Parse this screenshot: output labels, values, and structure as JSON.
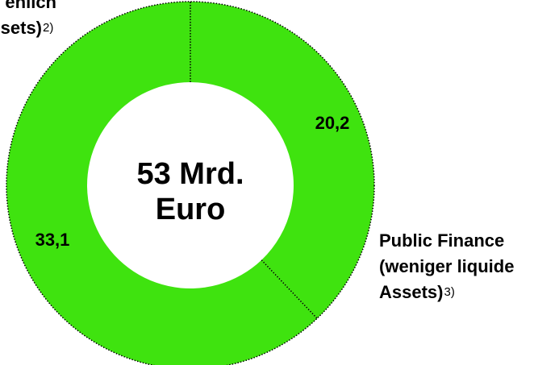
{
  "chart_data": {
    "type": "donut",
    "center_label": [
      "53 Mrd.",
      "Euro"
    ],
    "segments": [
      {
        "lines": [
          "Public Finance",
          "(weniger liquide",
          "Assets)"
        ],
        "note": "3)"
      },
      {
        "lines": [
          "ehlich",
          "ssets)"
        ],
        "note": "2)"
      }
    ],
    "values": [
      20.2,
      33.1
    ],
    "value_labels": [
      "20,2",
      "33,1"
    ],
    "color": "#3fe30f",
    "divider_color": "#000000"
  }
}
